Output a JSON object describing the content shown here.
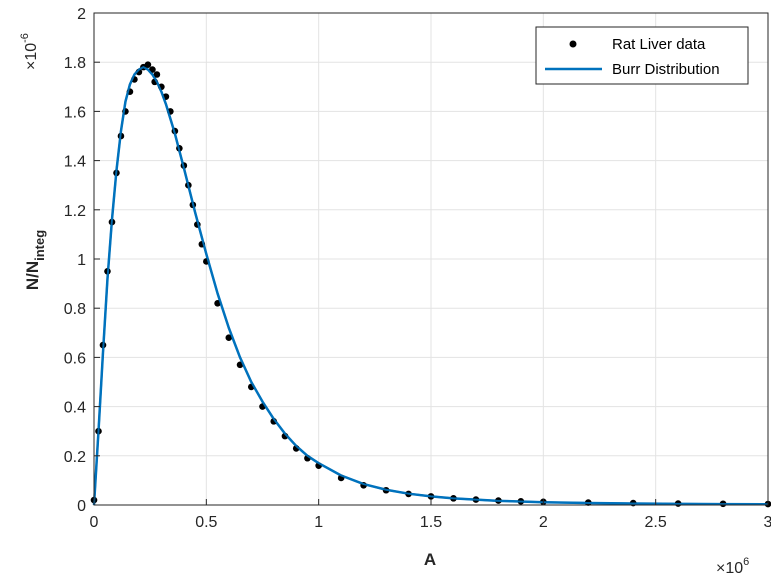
{
  "chart_data": {
    "type": "scatter",
    "xlabel": "A",
    "ylabel_main": "N/N",
    "ylabel_sub": "integ",
    "x_multiplier": {
      "base": "×10",
      "exp": "6"
    },
    "y_multiplier": {
      "base": "×10",
      "exp": "-6"
    },
    "xlim": [
      0,
      3
    ],
    "ylim": [
      0,
      2
    ],
    "x_ticks": [
      0,
      0.5,
      1,
      1.5,
      2,
      2.5,
      3
    ],
    "x_tick_labels": [
      "0",
      "0.5",
      "1",
      "1.5",
      "2",
      "2.5",
      "3"
    ],
    "y_ticks": [
      0,
      0.2,
      0.4,
      0.6,
      0.8,
      1,
      1.2,
      1.4,
      1.6,
      1.8,
      2
    ],
    "y_tick_labels": [
      "0",
      "0.2",
      "0.4",
      "0.6",
      "0.8",
      "1",
      "1.2",
      "1.4",
      "1.6",
      "1.8",
      "2"
    ],
    "grid": true,
    "legend_position": "top-right",
    "colors": {
      "data": "#000000",
      "fit": "#0072BD",
      "grid": "#e3e3e3",
      "axis": "#262626"
    },
    "series": [
      {
        "name": "Rat Liver data",
        "kind": "scatter",
        "x": [
          0.0,
          0.02,
          0.04,
          0.06,
          0.08,
          0.1,
          0.12,
          0.14,
          0.16,
          0.18,
          0.2,
          0.22,
          0.24,
          0.26,
          0.27,
          0.28,
          0.3,
          0.32,
          0.34,
          0.36,
          0.38,
          0.4,
          0.42,
          0.44,
          0.46,
          0.48,
          0.5,
          0.55,
          0.6,
          0.65,
          0.7,
          0.75,
          0.8,
          0.85,
          0.9,
          0.95,
          1.0,
          1.1,
          1.2,
          1.3,
          1.4,
          1.5,
          1.6,
          1.7,
          1.8,
          1.9,
          2.0,
          2.2,
          2.4,
          2.6,
          2.8,
          3.0
        ],
        "y": [
          0.02,
          0.3,
          0.65,
          0.95,
          1.15,
          1.35,
          1.5,
          1.6,
          1.68,
          1.73,
          1.76,
          1.78,
          1.79,
          1.77,
          1.72,
          1.75,
          1.7,
          1.66,
          1.6,
          1.52,
          1.45,
          1.38,
          1.3,
          1.22,
          1.14,
          1.06,
          0.99,
          0.82,
          0.68,
          0.57,
          0.48,
          0.4,
          0.34,
          0.28,
          0.23,
          0.19,
          0.16,
          0.11,
          0.08,
          0.06,
          0.045,
          0.035,
          0.027,
          0.022,
          0.018,
          0.015,
          0.013,
          0.01,
          0.008,
          0.006,
          0.005,
          0.004
        ]
      },
      {
        "name": "Burr Distribution",
        "kind": "line",
        "x": [
          0.0,
          0.02,
          0.04,
          0.06,
          0.08,
          0.1,
          0.12,
          0.14,
          0.16,
          0.18,
          0.2,
          0.22,
          0.24,
          0.26,
          0.28,
          0.3,
          0.32,
          0.34,
          0.36,
          0.38,
          0.4,
          0.45,
          0.5,
          0.55,
          0.6,
          0.65,
          0.7,
          0.75,
          0.8,
          0.85,
          0.9,
          0.95,
          1.0,
          1.1,
          1.2,
          1.3,
          1.4,
          1.5,
          1.6,
          1.8,
          2.0,
          2.2,
          2.4,
          2.6,
          2.8,
          3.0
        ],
        "y": [
          0.0,
          0.3,
          0.62,
          0.92,
          1.16,
          1.36,
          1.52,
          1.64,
          1.71,
          1.75,
          1.77,
          1.78,
          1.77,
          1.75,
          1.72,
          1.68,
          1.63,
          1.57,
          1.51,
          1.44,
          1.37,
          1.19,
          1.02,
          0.86,
          0.72,
          0.6,
          0.5,
          0.42,
          0.35,
          0.29,
          0.24,
          0.2,
          0.17,
          0.12,
          0.085,
          0.062,
          0.046,
          0.035,
          0.027,
          0.017,
          0.011,
          0.008,
          0.006,
          0.0045,
          0.0035,
          0.003
        ]
      }
    ]
  }
}
